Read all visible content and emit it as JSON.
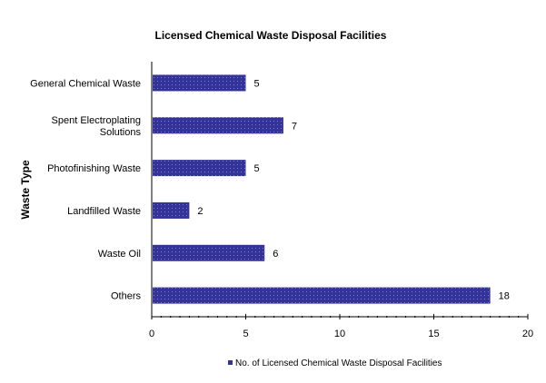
{
  "chart_data": {
    "type": "bar",
    "orientation": "horizontal",
    "title": "Licensed Chemical Waste Disposal Facilities",
    "xlabel": "",
    "ylabel": "Waste Type",
    "categories": [
      [
        "General Chemical Waste"
      ],
      [
        "Spent Electroplating",
        "Solutions"
      ],
      [
        "Photofinishing Waste"
      ],
      [
        "Landfilled Waste"
      ],
      [
        "Waste Oil"
      ],
      [
        "Others"
      ]
    ],
    "series": [
      {
        "name": "No. of Licensed Chemical Waste Disposal Facilities",
        "values": [
          5,
          7,
          5,
          2,
          6,
          18
        ],
        "color": "#333399"
      }
    ],
    "xlim": [
      0,
      20
    ],
    "xticks": [
      0,
      5,
      10,
      15,
      20
    ],
    "grid": false,
    "legend": "bottom"
  }
}
